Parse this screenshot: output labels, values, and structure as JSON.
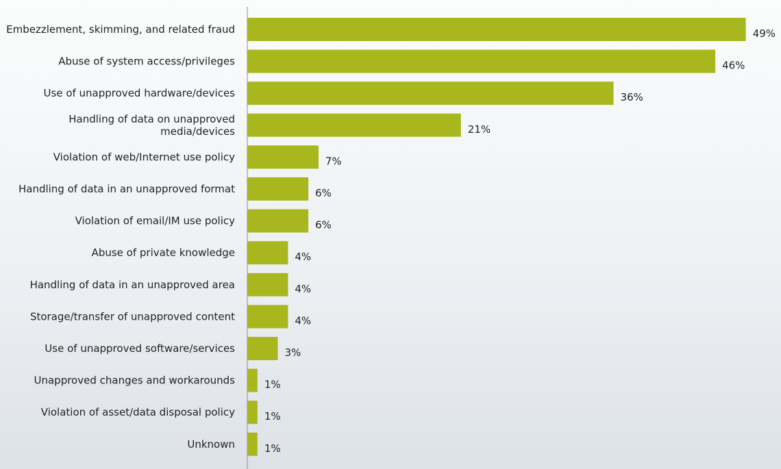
{
  "chart_data": {
    "type": "bar",
    "orientation": "horizontal",
    "categories": [
      "Embezzlement, skimming, and related fraud",
      "Abuse of system access/privileges",
      "Use of unapproved hardware/devices",
      "Handling of data on unapproved\nmedia/devices",
      "Violation of web/Internet use policy",
      "Handling of data in an unapproved format",
      "Violation of email/IM use policy",
      "Abuse of private knowledge",
      "Handling of data in an unapproved area",
      "Storage/transfer of unapproved content",
      "Use of unapproved software/services",
      "Unapproved changes and workarounds",
      "Violation of asset/data disposal policy",
      "Unknown"
    ],
    "values": [
      49,
      46,
      36,
      21,
      7,
      6,
      6,
      4,
      4,
      4,
      3,
      1,
      1,
      1
    ],
    "value_labels": [
      "49%",
      "46%",
      "36%",
      "21%",
      "7%",
      "6%",
      "6%",
      "4%",
      "4%",
      "4%",
      "3%",
      "1%",
      "1%",
      "1%"
    ],
    "xlim": [
      0,
      49
    ],
    "grid": false,
    "bar_color": "#a9b71e"
  }
}
